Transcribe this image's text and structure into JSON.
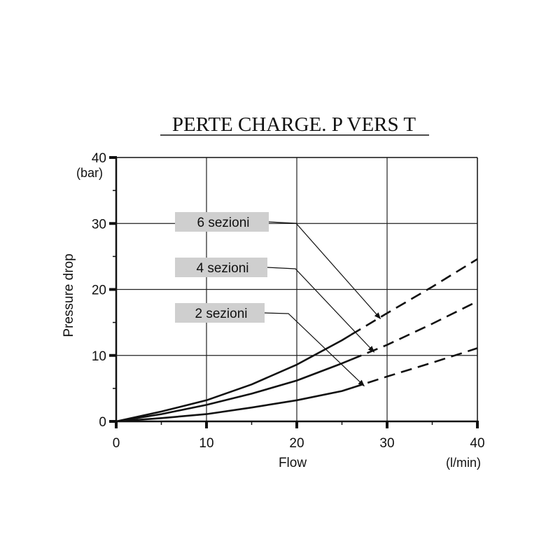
{
  "chart_data": {
    "type": "line",
    "title": "PERTE CHARGE. P VERS T",
    "xlabel": "Flow",
    "xunit": "(l/min)",
    "ylabel": "Pressure drop",
    "yunit": "(bar)",
    "xlim": [
      0,
      40
    ],
    "ylim": [
      0,
      40
    ],
    "xticks": [
      "0",
      "10",
      "20",
      "30",
      "40"
    ],
    "yticks": [
      "0",
      "10",
      "20",
      "30",
      "40"
    ],
    "grid": true,
    "series": [
      {
        "name": "6 sezioni",
        "solid_upto": 26,
        "points": [
          [
            0,
            0
          ],
          [
            5,
            1.5
          ],
          [
            10,
            3.2
          ],
          [
            15,
            5.6
          ],
          [
            20,
            8.6
          ],
          [
            25,
            12.3
          ],
          [
            30,
            16.4
          ],
          [
            35,
            20.4
          ],
          [
            40,
            24.6
          ]
        ]
      },
      {
        "name": "4 sezioni",
        "solid_upto": 26,
        "points": [
          [
            0,
            0
          ],
          [
            5,
            1.1
          ],
          [
            10,
            2.5
          ],
          [
            15,
            4.2
          ],
          [
            20,
            6.2
          ],
          [
            25,
            8.8
          ],
          [
            30,
            11.6
          ],
          [
            35,
            14.8
          ],
          [
            40,
            18.2
          ]
        ]
      },
      {
        "name": "2 sezioni",
        "solid_upto": 26,
        "points": [
          [
            0,
            0
          ],
          [
            5,
            0.5
          ],
          [
            10,
            1.1
          ],
          [
            15,
            2.1
          ],
          [
            20,
            3.2
          ],
          [
            25,
            4.6
          ],
          [
            30,
            6.8
          ],
          [
            35,
            8.9
          ],
          [
            40,
            11.1
          ]
        ]
      }
    ]
  }
}
